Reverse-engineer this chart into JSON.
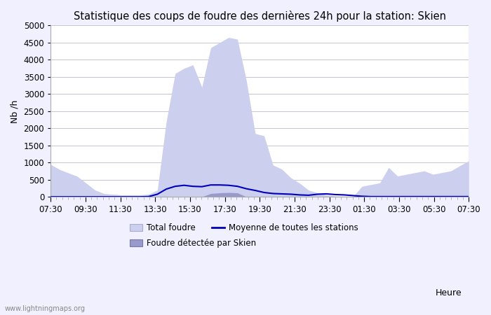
{
  "title": "Statistique des coups de foudre des dernières 24h pour la station: Skien",
  "xlabel": "Heure",
  "ylabel": "Nb /h",
  "ylim": [
    0,
    5000
  ],
  "yticks": [
    0,
    500,
    1000,
    1500,
    2000,
    2500,
    3000,
    3500,
    4000,
    4500,
    5000
  ],
  "xtick_labels": [
    "07:30",
    "09:30",
    "11:30",
    "13:30",
    "15:30",
    "17:30",
    "19:30",
    "21:30",
    "23:30",
    "01:30",
    "03:30",
    "05:30",
    "07:30"
  ],
  "watermark": "www.lightningmaps.org",
  "legend_total": "Total foudre",
  "legend_mean": "Moyenne de toutes les stations",
  "legend_skien": "Foudre détectée par Skien",
  "total_foudre": [
    950,
    800,
    700,
    600,
    400,
    200,
    100,
    80,
    60,
    60,
    60,
    80,
    200,
    2200,
    3600,
    3750,
    3850,
    3200,
    4350,
    4500,
    4650,
    4600,
    3400,
    1850,
    1780,
    930,
    810,
    560,
    400,
    200,
    120,
    60,
    30,
    20,
    10,
    310,
    360,
    410,
    860,
    610,
    660,
    710,
    760,
    660,
    710,
    760,
    910,
    1050
  ],
  "foudre_skien": [
    10,
    8,
    5,
    5,
    5,
    5,
    5,
    5,
    5,
    5,
    5,
    5,
    5,
    5,
    5,
    5,
    5,
    5,
    100,
    120,
    130,
    120,
    5,
    5,
    5,
    5,
    5,
    5,
    5,
    5,
    5,
    5,
    5,
    5,
    5,
    5,
    5,
    5,
    5,
    5,
    5,
    5,
    5,
    5,
    5,
    5,
    5,
    5
  ],
  "moyenne": [
    5,
    5,
    5,
    5,
    5,
    5,
    5,
    5,
    5,
    5,
    5,
    10,
    80,
    230,
    310,
    340,
    310,
    300,
    350,
    350,
    340,
    310,
    240,
    190,
    130,
    100,
    90,
    80,
    60,
    50,
    80,
    90,
    70,
    60,
    40,
    20,
    10,
    10,
    10,
    10,
    10,
    10,
    10,
    10,
    10,
    10,
    10,
    10
  ],
  "bg_color": "#f0f0ff",
  "plot_bg_color": "#ffffff",
  "fill_total_color": "#ccd0ee",
  "fill_skien_color": "#9999cc",
  "line_mean_color": "#0000bb",
  "grid_color": "#bbbbcc",
  "title_fontsize": 10.5,
  "axis_fontsize": 9,
  "tick_fontsize": 8.5
}
